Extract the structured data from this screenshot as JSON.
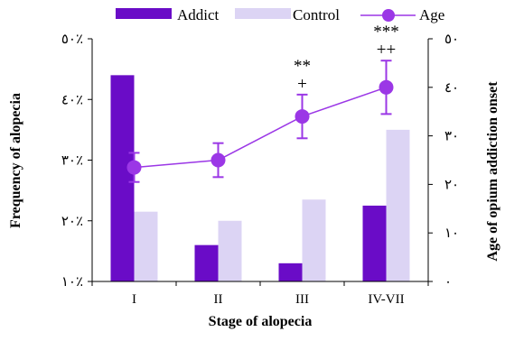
{
  "chart_data": {
    "type": "bar",
    "categories": [
      "I",
      "II",
      "III",
      "IV-VII"
    ],
    "series": [
      {
        "name": "Addict",
        "type": "bar",
        "axis": "left",
        "color": "#6a0cc7",
        "values": [
          44,
          16,
          13,
          22.5
        ]
      },
      {
        "name": "Control",
        "type": "bar",
        "axis": "left",
        "color": "#dcd4f4",
        "values": [
          21.5,
          20,
          23.5,
          35
        ]
      },
      {
        "name": "Age",
        "type": "line",
        "axis": "right",
        "color": "#9b37e6",
        "values": [
          23.5,
          25,
          34,
          40
        ],
        "error": [
          3,
          3.5,
          4.5,
          5.5
        ]
      }
    ],
    "xlabel": "Stage of alopecia",
    "ylabel": "Frequency of alopecia",
    "ylabel_right": "Age of opium addiction onset",
    "ylim": [
      10,
      50
    ],
    "ylim_right": [
      0,
      50
    ],
    "yticks": [
      "١٠٪",
      "٢٠٪",
      "٣٠٪",
      "٤٠٪",
      "٥٠٪"
    ],
    "yticks_right": [
      "٠",
      "١٠",
      "٢٠",
      "٣٠",
      "٤٠",
      "٥٠"
    ],
    "annotations": [
      {
        "category": "III",
        "lines": [
          "**",
          "+"
        ]
      },
      {
        "category": "IV-VII",
        "lines": [
          "***",
          "++"
        ]
      }
    ],
    "legend_position": "top",
    "grid": false
  }
}
